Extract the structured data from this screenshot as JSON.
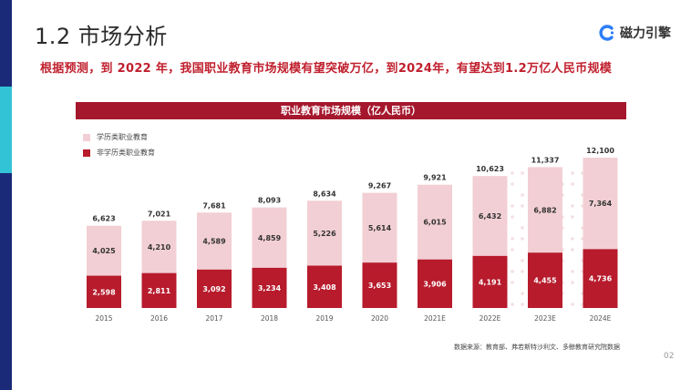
{
  "slide": {
    "title": "1.2 市场分析",
    "subtitle": "根据预测，到  2022  年，我国职业教育市场规模有望突破万亿，到2024年，有望达到1.2万亿人民币规模",
    "page_number": "02"
  },
  "logo": {
    "text": "磁力引擎",
    "icon": "magnet-c-logo-icon",
    "color": "#2d7ff9"
  },
  "accent_colors": {
    "navy": "#1a2a78",
    "cyan": "#32c4d6",
    "header_red": "#a5172d"
  },
  "source_note": "数据来源：教育部、弗若斯特沙利文、多鲸教育研究院数据",
  "chart_data": {
    "type": "bar",
    "stacked": true,
    "title": "职业教育市场规模（亿人民币）",
    "categories": [
      "2015",
      "2016",
      "2017",
      "2018",
      "2019",
      "2020",
      "2021E",
      "2022E",
      "2023E",
      "2024E"
    ],
    "series": [
      {
        "name": "非学历类职业教育",
        "color": "#b71b2c",
        "values": [
          2598,
          2811,
          3092,
          3234,
          3408,
          3653,
          3906,
          4191,
          4455,
          4736
        ]
      },
      {
        "name": "学历类职业教育",
        "color": "#f2cfd4",
        "values": [
          4025,
          4210,
          4589,
          4859,
          5226,
          5614,
          6015,
          6432,
          6882,
          7364
        ]
      }
    ],
    "totals": [
      6623,
      7021,
      7681,
      8093,
      8634,
      9267,
      9921,
      10623,
      11337,
      12100
    ],
    "value_labels": {
      "non_degree": [
        "2,598",
        "2,811",
        "3,092",
        "3,234",
        "3,408",
        "3,653",
        "3,906",
        "4,191",
        "4,455",
        "4,736"
      ],
      "degree": [
        "4,025",
        "4,210",
        "4,589",
        "4,859",
        "5,226",
        "5,614",
        "6,015",
        "6,432",
        "6,882",
        "7,364"
      ],
      "totals": [
        "6,623",
        "7,021",
        "7,681",
        "8,093",
        "8,634",
        "9,267",
        "9,921",
        "10,623",
        "11,337",
        "12,100"
      ]
    },
    "ylim": [
      0,
      12100
    ],
    "grid": false,
    "legend_position": "top-left"
  }
}
